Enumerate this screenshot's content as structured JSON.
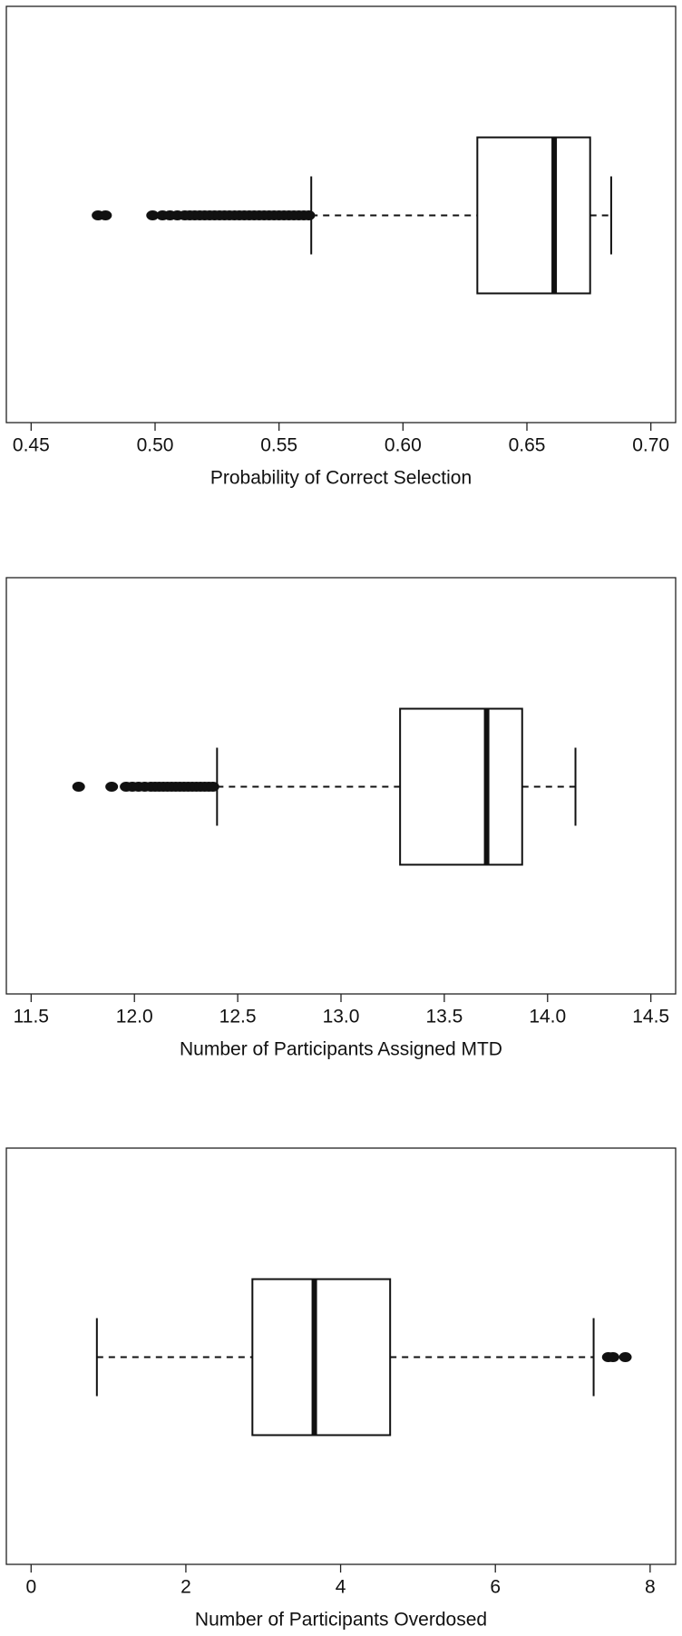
{
  "chart_data": [
    {
      "type": "box",
      "xlabel": "Probability of Correct Selection",
      "xlim": [
        0.44,
        0.71
      ],
      "xticks": [
        0.45,
        {
          "value": 0.5,
          "label": "0.50"
        },
        0.55,
        {
          "value": 0.6,
          "label": "0.60"
        },
        0.65,
        {
          "value": 0.7,
          "label": "0.70"
        }
      ],
      "whisker_low": 0.563,
      "q1": 0.63,
      "median": 0.661,
      "q3": 0.6755,
      "whisker_high": 0.684,
      "outliers": [
        0.477,
        0.48,
        0.499,
        0.503,
        0.506,
        0.509,
        0.512,
        0.514,
        0.516,
        0.518,
        0.52,
        0.522,
        0.524,
        0.526,
        0.528,
        0.53,
        0.532,
        0.534,
        0.536,
        0.538,
        0.54,
        0.542,
        0.544,
        0.546,
        0.548,
        0.55,
        0.552,
        0.554,
        0.556,
        0.558,
        0.56,
        0.562
      ]
    },
    {
      "type": "box",
      "xlabel": "Number of Participants Assigned MTD",
      "xlim": [
        11.38,
        14.62
      ],
      "xticks": [
        11.5,
        {
          "value": 12,
          "label": "12.0"
        },
        12.5,
        {
          "value": 13,
          "label": "13.0"
        },
        13.5,
        {
          "value": 14,
          "label": "14.0"
        },
        14.5
      ],
      "whisker_low": 12.4,
      "q1": 13.286,
      "median": 13.705,
      "q3": 13.877,
      "whisker_high": 14.135,
      "outliers": [
        11.73,
        11.89,
        11.96,
        11.99,
        12.02,
        12.05,
        12.08,
        12.1,
        12.12,
        12.14,
        12.16,
        12.18,
        12.2,
        12.22,
        12.24,
        12.26,
        12.28,
        12.3,
        12.32,
        12.34,
        12.36,
        12.38
      ]
    },
    {
      "type": "box",
      "xlabel": "Number of Participants Overdosed",
      "xlim": [
        -0.32,
        8.33
      ],
      "xticks": [
        0,
        2,
        4,
        6,
        8
      ],
      "whisker_low": 0.85,
      "q1": 2.86,
      "median": 3.66,
      "q3": 4.64,
      "whisker_high": 7.27,
      "outliers": [
        7.46,
        7.52,
        7.68
      ]
    }
  ]
}
